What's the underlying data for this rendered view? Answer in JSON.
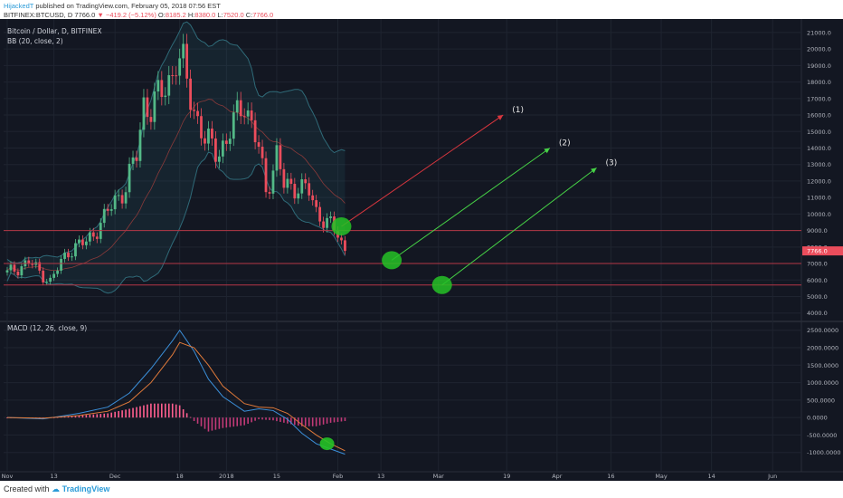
{
  "header": {
    "author": "HijackedT",
    "published_text": "published on TradingView.com, February 05, 2018 07:56 EST",
    "symbol_line": {
      "symbol": "BITFINEX:BTCUSD, D",
      "last": "7766.0",
      "change": "−419.2 (−5.12%)",
      "open_label": "O:",
      "open": "8185.2",
      "high_label": "H:",
      "high": "8380.0",
      "low_label": "L:",
      "low": "7520.0",
      "close_label": "C:",
      "close": "7766.0"
    }
  },
  "chart_data": [
    {
      "type": "candlestick",
      "title": "Bitcoin / Dollar, D, BITFINEX",
      "indicator": "BB (20, close, 2)",
      "ylim": [
        3600,
        21600
      ],
      "yticks": [
        4000,
        5000,
        6000,
        7000,
        8000,
        9000,
        10000,
        11000,
        12000,
        13000,
        14000,
        15000,
        16000,
        17000,
        18000,
        19000,
        20000,
        21000
      ],
      "ytick_labels": [
        "4000.0",
        "5000.0",
        "6000.0",
        "7000.0",
        "8000.0",
        "9000.0",
        "10000.0",
        "11000.0",
        "12000.0",
        "13000.0",
        "14000.0",
        "15000.0",
        "16000.0",
        "17000.0",
        "18000.0",
        "19000.0",
        "20000.0",
        "21000.0"
      ],
      "last_price_label": "7766.0",
      "last_price": 7766,
      "x_tick_labels": [
        "Nov",
        "13",
        "Dec",
        "18",
        "2018",
        "15",
        "Feb",
        "13",
        "Mar",
        "19",
        "Apr",
        "16",
        "May",
        "14",
        "Jun"
      ],
      "x_tick_days": [
        0,
        13,
        30,
        48,
        61,
        75,
        92,
        104,
        120,
        139,
        153,
        168,
        182,
        196,
        213
      ],
      "x_range_days": [
        -1,
        221
      ],
      "approx_close": [
        [
          0,
          6400
        ],
        [
          6,
          7100
        ],
        [
          12,
          5900
        ],
        [
          17,
          7800
        ],
        [
          22,
          8300
        ],
        [
          27,
          9700
        ],
        [
          30,
          10900
        ],
        [
          33,
          11600
        ],
        [
          36,
          13600
        ],
        [
          38,
          16800
        ],
        [
          40,
          16300
        ],
        [
          43,
          17400
        ],
        [
          46,
          18600
        ],
        [
          47,
          19300
        ],
        [
          49,
          18900
        ],
        [
          52,
          16400
        ],
        [
          55,
          14400
        ],
        [
          58,
          13900
        ],
        [
          61,
          14300
        ],
        [
          63,
          15500
        ],
        [
          66,
          17000
        ],
        [
          68,
          15300
        ],
        [
          70,
          13900
        ],
        [
          72,
          11400
        ],
        [
          75,
          13600
        ],
        [
          77,
          11700
        ],
        [
          79,
          11600
        ],
        [
          81,
          11800
        ],
        [
          84,
          11300
        ],
        [
          86,
          10100
        ],
        [
          88,
          9800
        ],
        [
          90,
          9300
        ],
        [
          92,
          8700
        ],
        [
          93,
          8200
        ],
        [
          94,
          7766
        ]
      ],
      "horizontal_lines": [
        9000,
        7000,
        5700
      ],
      "circles": [
        {
          "x_day": 93,
          "y": 9250
        },
        {
          "x_day": 107,
          "y": 7200
        },
        {
          "x_day": 121,
          "y": 5700
        }
      ],
      "arrows": [
        {
          "label": "(1)",
          "color": "#d9363e",
          "from": [
            93,
            9250
          ],
          "to": [
            138,
            16000
          ]
        },
        {
          "label": "(2)",
          "color": "#46d246",
          "from": [
            107,
            7200
          ],
          "to": [
            151,
            14000
          ]
        },
        {
          "label": "(3)",
          "color": "#46d246",
          "from": [
            121,
            5700
          ],
          "to": [
            164,
            12800
          ]
        }
      ]
    },
    {
      "type": "line",
      "title": "MACD (12, 26, close, 9)",
      "ylim": [
        -1500,
        2700
      ],
      "yticks": [
        -1000,
        -500,
        0,
        500,
        1000,
        1500,
        2000,
        2500
      ],
      "ytick_labels": [
        "-1000.0000",
        "-500.0000",
        "0.0000",
        "500.0000",
        "1000.0000",
        "1500.0000",
        "2000.0000",
        "2500.0000"
      ],
      "series": [
        {
          "name": "",
          "color": "#3b8fd9",
          "x": [
            0,
            10,
            20,
            28,
            34,
            40,
            46,
            48,
            52,
            56,
            60,
            66,
            70,
            74,
            78,
            82,
            86,
            90,
            94
          ],
          "values": [
            0,
            -40,
            120,
            300,
            700,
            1400,
            2200,
            2500,
            1900,
            1100,
            600,
            180,
            250,
            200,
            -50,
            -450,
            -750,
            -900,
            -1050
          ]
        },
        {
          "name": "",
          "color": "#e07a3a",
          "x": [
            0,
            10,
            20,
            28,
            34,
            40,
            46,
            48,
            52,
            56,
            60,
            66,
            70,
            74,
            78,
            82,
            86,
            90,
            94
          ],
          "values": [
            0,
            -20,
            60,
            180,
            450,
            1000,
            1800,
            2150,
            2000,
            1500,
            900,
            400,
            300,
            280,
            120,
            -200,
            -500,
            -750,
            -950
          ]
        }
      ],
      "circle": {
        "x_day": 89,
        "y": -750
      }
    }
  ],
  "footer": {
    "created_with": "Created with",
    "brand": "TradingView"
  },
  "colors": {
    "bg": "#131722",
    "up": "#53b987",
    "down": "#eb4d5c",
    "red_line": "#b43746",
    "green": "#26c226"
  }
}
